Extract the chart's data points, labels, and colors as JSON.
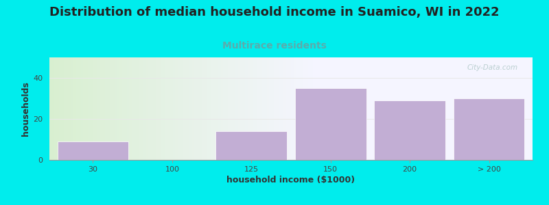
{
  "title": "Distribution of median household income in Suamico, WI in 2022",
  "subtitle": "Multirace residents",
  "xlabel": "household income ($1000)",
  "ylabel": "households",
  "bar_values": [
    9,
    14,
    35,
    29,
    30
  ],
  "bar_positions": [
    0,
    2,
    3,
    4,
    5
  ],
  "bar_width": 0.9,
  "xtick_labels": [
    "30",
    "100",
    "125",
    "150",
    "200",
    "> 200"
  ],
  "xtick_positions": [
    0,
    1,
    2,
    3,
    4,
    5
  ],
  "ylim": [
    0,
    50
  ],
  "yticks": [
    0,
    20,
    40
  ],
  "bar_color": "#c2aed4",
  "bar_edgecolor": "#c2aed4",
  "background_outer": "#00eded",
  "plot_bg_green": "#d8efd0",
  "plot_bg_white": "#f5f5ff",
  "title_fontsize": 13,
  "title_color": "#222222",
  "subtitle_fontsize": 10,
  "subtitle_color": "#5aacac",
  "axis_label_fontsize": 9,
  "tick_fontsize": 8,
  "watermark": "City-Data.com",
  "watermark_color": "#b0c8c8",
  "grid_color": "#e8e8e8",
  "xlim": [
    -0.55,
    5.55
  ]
}
